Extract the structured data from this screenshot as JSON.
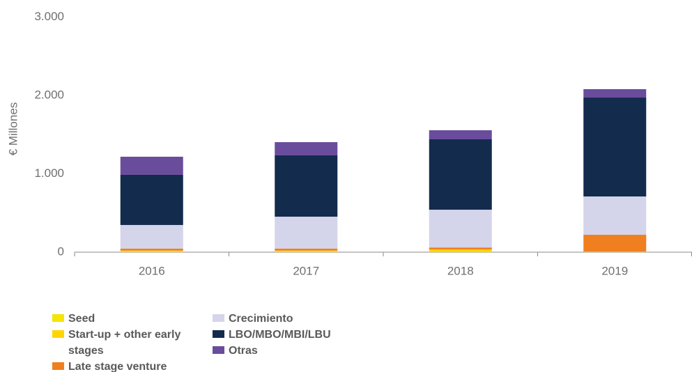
{
  "chart_data": {
    "type": "stacked_bar",
    "y_label": "€ Millones",
    "categories": [
      "2016",
      "2017",
      "2018",
      "2019"
    ],
    "series": [
      {
        "name": "Seed",
        "color": "#f3e600",
        "values": [
          5,
          5,
          5,
          2
        ]
      },
      {
        "name": "Start-up + other early stages",
        "color": "#ffd500",
        "values": [
          15,
          15,
          30,
          5
        ]
      },
      {
        "name": "Late stage venture",
        "color": "#f07f1f",
        "values": [
          25,
          25,
          25,
          215
        ]
      },
      {
        "name": "Crecimiento",
        "color": "#d4d4ea",
        "values": [
          302,
          408,
          482,
          489
        ]
      },
      {
        "name": "LBO/MBO/MBI/LBU",
        "color": "#132b4d",
        "values": [
          640,
          783,
          898,
          1262
        ]
      },
      {
        "name": "Otras",
        "color": "#6a4c9d",
        "values": [
          231,
          168,
          116,
          107
        ]
      }
    ],
    "ylim": [
      0,
      3000
    ],
    "yticks": [
      0,
      {
        "value": 1000,
        "label": "1.000"
      },
      {
        "value": 2000,
        "label": "2.000"
      },
      {
        "value": 3000,
        "label": "3.000"
      }
    ],
    "grid": false
  }
}
